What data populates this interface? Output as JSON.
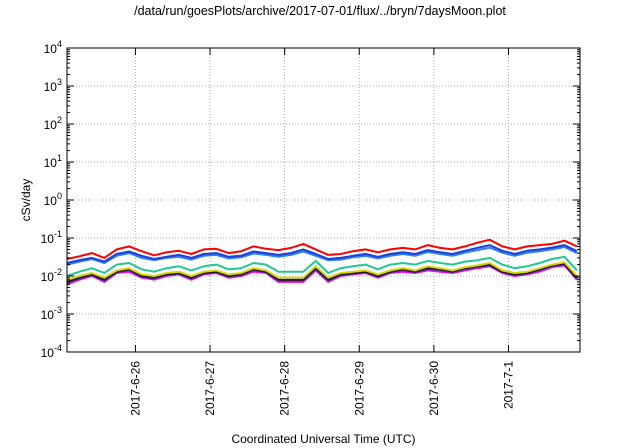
{
  "chart_data": {
    "type": "line",
    "title": "/data/run/goesPlots/archive/2017-07-01/flux/../bryn/7daysMoon.plot",
    "xlabel": "Coordinated Universal Time (UTC)",
    "ylabel": "cSv/day",
    "yscale": "log",
    "ylim": [
      0.0001,
      10000
    ],
    "y_ticks": [
      {
        "base": "10",
        "exp": "-4"
      },
      {
        "base": "10",
        "exp": "-3"
      },
      {
        "base": "10",
        "exp": "-2"
      },
      {
        "base": "10",
        "exp": "-1"
      },
      {
        "base": "10",
        "exp": "0"
      },
      {
        "base": "10",
        "exp": "1"
      },
      {
        "base": "10",
        "exp": "2"
      },
      {
        "base": "10",
        "exp": "3"
      },
      {
        "base": "10",
        "exp": "4"
      }
    ],
    "x_domain": [
      "2017-06-25 02:00",
      "2017-07-01 23:00"
    ],
    "x_ticks": [
      "2017-6-26",
      "2017-6-27",
      "2017-6-28",
      "2017-6-29",
      "2017-6-30",
      "2017-7-1"
    ],
    "grid": true,
    "series_colors": [
      "#ff0000",
      "#1f3fd0",
      "#2a7fff",
      "#20c896",
      "#d8d800",
      "#1a1a1a",
      "#6a2fb0",
      "#ff00ff"
    ],
    "x_hours": [
      0,
      4,
      8,
      12,
      16,
      20,
      24,
      28,
      32,
      36,
      40,
      44,
      48,
      52,
      56,
      60,
      64,
      68,
      72,
      76,
      80,
      84,
      88,
      92,
      96,
      100,
      104,
      108,
      112,
      116,
      120,
      124,
      128,
      132,
      136,
      140,
      144,
      148,
      152,
      156,
      160,
      164
    ],
    "series": [
      {
        "values": [
          0.028,
          0.033,
          0.04,
          0.03,
          0.05,
          0.06,
          0.045,
          0.035,
          0.042,
          0.046,
          0.038,
          0.05,
          0.052,
          0.04,
          0.045,
          0.06,
          0.052,
          0.048,
          0.055,
          0.07,
          0.05,
          0.036,
          0.038,
          0.045,
          0.05,
          0.042,
          0.05,
          0.055,
          0.05,
          0.065,
          0.055,
          0.05,
          0.06,
          0.075,
          0.09,
          0.06,
          0.05,
          0.06,
          0.065,
          0.07,
          0.085,
          0.06
        ]
      },
      {
        "values": [
          0.022,
          0.026,
          0.03,
          0.024,
          0.038,
          0.044,
          0.034,
          0.028,
          0.032,
          0.036,
          0.03,
          0.038,
          0.04,
          0.032,
          0.034,
          0.044,
          0.04,
          0.036,
          0.04,
          0.05,
          0.038,
          0.028,
          0.03,
          0.034,
          0.038,
          0.032,
          0.038,
          0.042,
          0.038,
          0.048,
          0.042,
          0.038,
          0.046,
          0.055,
          0.065,
          0.046,
          0.038,
          0.046,
          0.05,
          0.056,
          0.065,
          0.045
        ]
      },
      {
        "values": [
          0.02,
          0.024,
          0.028,
          0.022,
          0.034,
          0.04,
          0.03,
          0.026,
          0.03,
          0.032,
          0.027,
          0.034,
          0.036,
          0.029,
          0.031,
          0.039,
          0.036,
          0.032,
          0.036,
          0.044,
          0.034,
          0.026,
          0.027,
          0.031,
          0.034,
          0.029,
          0.034,
          0.038,
          0.034,
          0.043,
          0.038,
          0.034,
          0.041,
          0.048,
          0.056,
          0.041,
          0.034,
          0.041,
          0.045,
          0.05,
          0.058,
          0.04
        ]
      },
      {
        "values": [
          0.01,
          0.013,
          0.016,
          0.012,
          0.02,
          0.022,
          0.015,
          0.013,
          0.016,
          0.018,
          0.014,
          0.018,
          0.02,
          0.015,
          0.016,
          0.022,
          0.02,
          0.013,
          0.013,
          0.013,
          0.025,
          0.012,
          0.016,
          0.018,
          0.02,
          0.015,
          0.02,
          0.022,
          0.02,
          0.025,
          0.022,
          0.02,
          0.024,
          0.026,
          0.03,
          0.02,
          0.016,
          0.018,
          0.022,
          0.028,
          0.032,
          0.014
        ]
      },
      {
        "values": [
          0.008,
          0.01,
          0.012,
          0.009,
          0.014,
          0.016,
          0.011,
          0.01,
          0.012,
          0.013,
          0.01,
          0.013,
          0.014,
          0.011,
          0.012,
          0.016,
          0.014,
          0.009,
          0.009,
          0.009,
          0.018,
          0.009,
          0.012,
          0.013,
          0.014,
          0.011,
          0.014,
          0.016,
          0.014,
          0.018,
          0.016,
          0.014,
          0.017,
          0.019,
          0.022,
          0.014,
          0.012,
          0.013,
          0.016,
          0.02,
          0.023,
          0.01
        ]
      },
      {
        "values": [
          0.007,
          0.009,
          0.011,
          0.008,
          0.013,
          0.015,
          0.01,
          0.009,
          0.011,
          0.012,
          0.009,
          0.012,
          0.013,
          0.01,
          0.011,
          0.015,
          0.013,
          0.008,
          0.008,
          0.008,
          0.016,
          0.008,
          0.011,
          0.012,
          0.013,
          0.01,
          0.013,
          0.015,
          0.013,
          0.016,
          0.015,
          0.013,
          0.016,
          0.018,
          0.02,
          0.013,
          0.011,
          0.012,
          0.015,
          0.019,
          0.021,
          0.009
        ]
      },
      {
        "values": [
          0.0065,
          0.0085,
          0.0105,
          0.0075,
          0.0125,
          0.014,
          0.0095,
          0.0085,
          0.0105,
          0.0115,
          0.0085,
          0.0115,
          0.0125,
          0.0095,
          0.0105,
          0.014,
          0.0125,
          0.0075,
          0.0075,
          0.0075,
          0.015,
          0.0075,
          0.0105,
          0.0115,
          0.0125,
          0.0095,
          0.0125,
          0.014,
          0.0125,
          0.015,
          0.014,
          0.0125,
          0.015,
          0.017,
          0.019,
          0.0125,
          0.0105,
          0.0115,
          0.014,
          0.018,
          0.02,
          0.0085
        ]
      },
      {
        "values": [
          0.006,
          0.008,
          0.01,
          0.007,
          0.012,
          0.013,
          0.009,
          0.008,
          0.01,
          0.011,
          0.008,
          0.011,
          0.012,
          0.009,
          0.01,
          0.013,
          0.012,
          0.007,
          0.007,
          0.007,
          0.014,
          0.007,
          0.01,
          0.011,
          0.012,
          0.009,
          0.012,
          0.013,
          0.012,
          0.014,
          0.013,
          0.012,
          0.014,
          0.016,
          0.018,
          0.012,
          0.01,
          0.011,
          0.013,
          0.017,
          0.019,
          0.008
        ]
      }
    ]
  }
}
